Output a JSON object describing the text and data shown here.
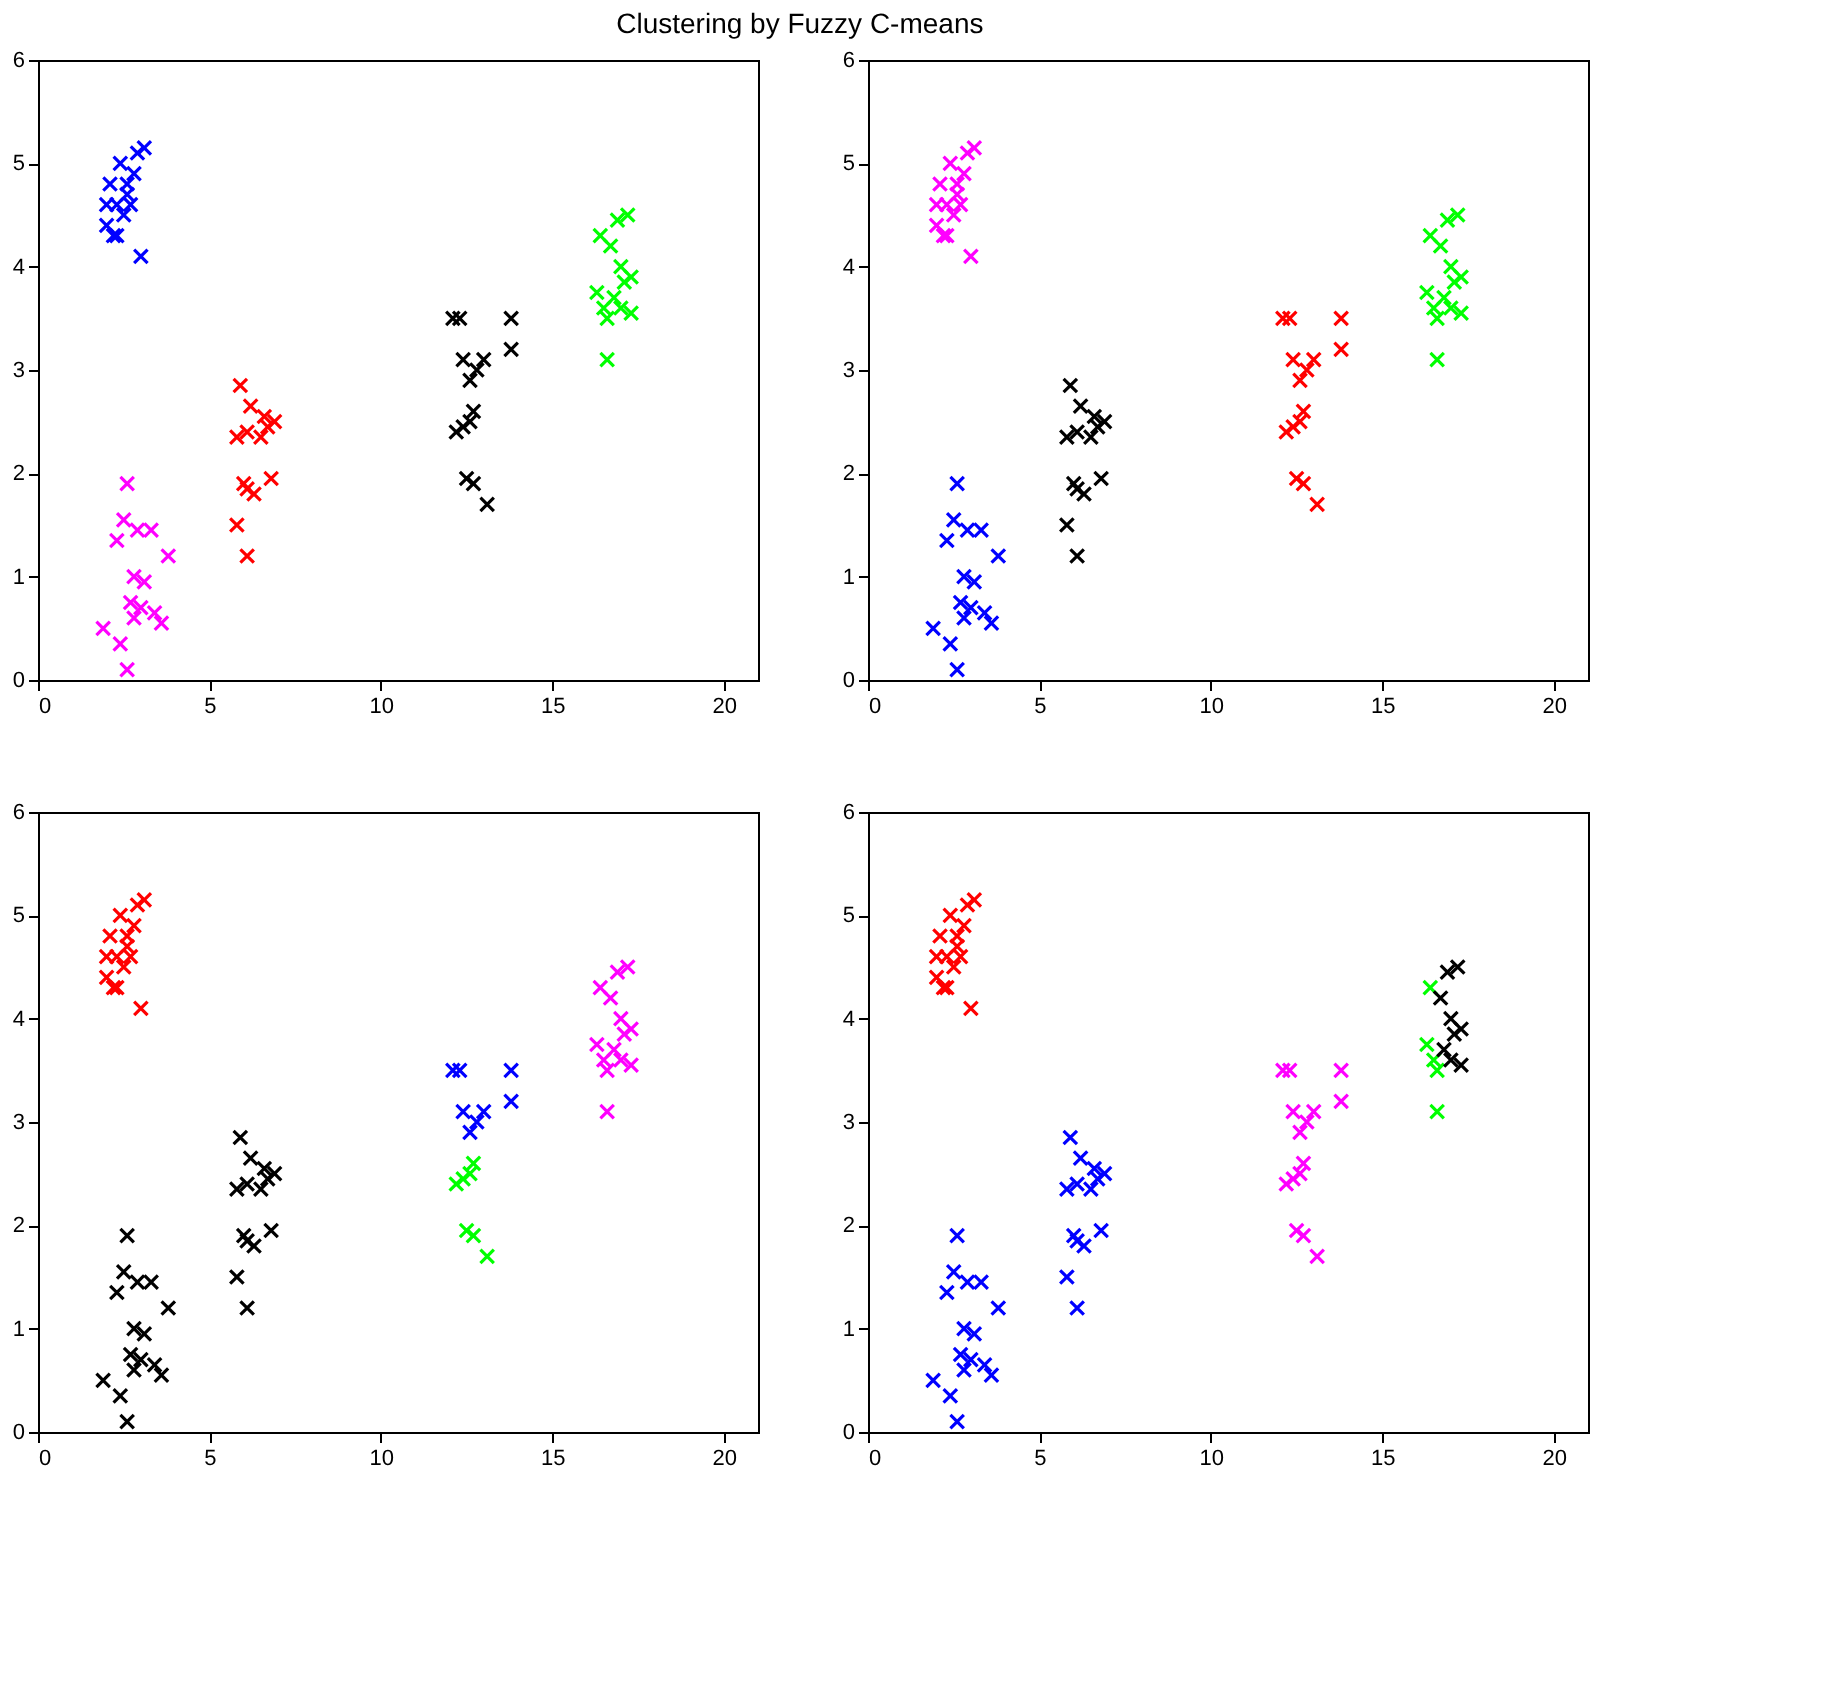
{
  "chart_data": [
    {
      "type": "scatter",
      "title": "Clustering by Fuzzy C-means",
      "marker": "cross",
      "grid": false,
      "xlim": [
        0,
        21
      ],
      "xticks": [
        0,
        5,
        10,
        15,
        20
      ],
      "ylim": [
        0,
        6
      ],
      "yticks": [
        0,
        1,
        2,
        3,
        4,
        5,
        6
      ],
      "series": [
        {
          "color": "#0000ff",
          "x": [
            2.0,
            2.2,
            2.3,
            2.1,
            2.4,
            2.6,
            2.5,
            2.8,
            2.9,
            3.1,
            2.7,
            2.3,
            3.0,
            2.6,
            2.0
          ],
          "values": [
            4.4,
            4.3,
            4.6,
            4.8,
            5.0,
            4.7,
            4.5,
            4.9,
            5.1,
            5.15,
            4.6,
            4.3,
            4.1,
            4.8,
            4.6
          ]
        },
        {
          "color": "#ff0000",
          "x": [
            5.9,
            6.2,
            6.6,
            6.9,
            6.5,
            5.8,
            6.1,
            6.0,
            6.1,
            6.3,
            6.8,
            5.8,
            6.1,
            6.7
          ],
          "values": [
            2.85,
            2.65,
            2.55,
            2.5,
            2.35,
            2.35,
            2.4,
            1.9,
            1.85,
            1.8,
            1.95,
            1.5,
            1.2,
            2.45
          ]
        },
        {
          "color": "#ff00ff",
          "x": [
            2.6,
            2.5,
            2.3,
            2.9,
            3.3,
            3.8,
            2.8,
            3.1,
            2.7,
            3.0,
            2.8,
            3.4,
            3.6,
            1.9,
            2.4,
            2.6
          ],
          "values": [
            1.9,
            1.55,
            1.35,
            1.45,
            1.45,
            1.2,
            1.0,
            0.95,
            0.75,
            0.7,
            0.6,
            0.65,
            0.55,
            0.5,
            0.35,
            0.1
          ]
        },
        {
          "color": "#000000",
          "x": [
            12.1,
            12.3,
            13.8,
            12.4,
            12.8,
            13.0,
            13.8,
            12.6,
            12.7,
            12.2,
            12.4,
            12.6,
            12.5,
            12.7,
            13.1
          ],
          "values": [
            3.5,
            3.5,
            3.5,
            3.1,
            3.0,
            3.1,
            3.2,
            2.9,
            2.6,
            2.4,
            2.45,
            2.5,
            1.95,
            1.9,
            1.7
          ]
        },
        {
          "color": "#00ff00",
          "x": [
            16.4,
            16.9,
            17.2,
            16.7,
            17.0,
            16.3,
            16.5,
            16.8,
            17.1,
            17.3,
            16.6,
            17.0,
            17.3,
            16.6
          ],
          "values": [
            4.3,
            4.45,
            4.5,
            4.2,
            4.0,
            3.75,
            3.6,
            3.7,
            3.85,
            3.9,
            3.5,
            3.6,
            3.55,
            3.1
          ]
        }
      ]
    },
    {
      "type": "scatter",
      "marker": "cross",
      "grid": false,
      "xlim": [
        0,
        21
      ],
      "xticks": [
        0,
        5,
        10,
        15,
        20
      ],
      "ylim": [
        0,
        6
      ],
      "yticks": [
        0,
        1,
        2,
        3,
        4,
        5,
        6
      ],
      "series": [
        {
          "color": "#ff00ff",
          "x": [
            2.0,
            2.2,
            2.3,
            2.1,
            2.4,
            2.6,
            2.5,
            2.8,
            2.9,
            3.1,
            2.7,
            2.3,
            3.0,
            2.6,
            2.0
          ],
          "values": [
            4.4,
            4.3,
            4.6,
            4.8,
            5.0,
            4.7,
            4.5,
            4.9,
            5.1,
            5.15,
            4.6,
            4.3,
            4.1,
            4.8,
            4.6
          ]
        },
        {
          "color": "#000000",
          "x": [
            5.9,
            6.2,
            6.6,
            6.9,
            6.5,
            5.8,
            6.1,
            6.0,
            6.1,
            6.3,
            6.8,
            5.8,
            6.1,
            6.7
          ],
          "values": [
            2.85,
            2.65,
            2.55,
            2.5,
            2.35,
            2.35,
            2.4,
            1.9,
            1.85,
            1.8,
            1.95,
            1.5,
            1.2,
            2.45
          ]
        },
        {
          "color": "#0000ff",
          "x": [
            2.6,
            2.5,
            2.3,
            2.9,
            3.3,
            3.8,
            2.8,
            3.1,
            2.7,
            3.0,
            2.8,
            3.4,
            3.6,
            1.9,
            2.4,
            2.6
          ],
          "values": [
            1.9,
            1.55,
            1.35,
            1.45,
            1.45,
            1.2,
            1.0,
            0.95,
            0.75,
            0.7,
            0.6,
            0.65,
            0.55,
            0.5,
            0.35,
            0.1
          ]
        },
        {
          "color": "#ff0000",
          "x": [
            12.1,
            12.3,
            13.8,
            12.4,
            12.8,
            13.0,
            13.8,
            12.6,
            12.7,
            12.2,
            12.4,
            12.6,
            12.5,
            12.7,
            13.1
          ],
          "values": [
            3.5,
            3.5,
            3.5,
            3.1,
            3.0,
            3.1,
            3.2,
            2.9,
            2.6,
            2.4,
            2.45,
            2.5,
            1.95,
            1.9,
            1.7
          ]
        },
        {
          "color": "#00ff00",
          "x": [
            16.4,
            16.9,
            17.2,
            16.7,
            17.0,
            16.3,
            16.5,
            16.8,
            17.1,
            17.3,
            16.6,
            17.0,
            17.3,
            16.6
          ],
          "values": [
            4.3,
            4.45,
            4.5,
            4.2,
            4.0,
            3.75,
            3.6,
            3.7,
            3.85,
            3.9,
            3.5,
            3.6,
            3.55,
            3.1
          ]
        }
      ]
    },
    {
      "type": "scatter",
      "marker": "cross",
      "grid": false,
      "xlim": [
        0,
        21
      ],
      "xticks": [
        0,
        5,
        10,
        15,
        20
      ],
      "ylim": [
        0,
        6
      ],
      "yticks": [
        0,
        1,
        2,
        3,
        4,
        5,
        6
      ],
      "series": [
        {
          "color": "#ff0000",
          "x": [
            2.0,
            2.2,
            2.3,
            2.1,
            2.4,
            2.6,
            2.5,
            2.8,
            2.9,
            3.1,
            2.7,
            2.3,
            3.0,
            2.6,
            2.0
          ],
          "values": [
            4.4,
            4.3,
            4.6,
            4.8,
            5.0,
            4.7,
            4.5,
            4.9,
            5.1,
            5.15,
            4.6,
            4.3,
            4.1,
            4.8,
            4.6
          ]
        },
        {
          "color": "#000000",
          "x": [
            5.9,
            6.2,
            6.6,
            6.9,
            6.5,
            5.8,
            6.1,
            6.0,
            6.1,
            6.3,
            6.8,
            5.8,
            6.1,
            6.7,
            2.6,
            2.5,
            2.3,
            2.9,
            3.3,
            3.8,
            2.8,
            3.1,
            2.7,
            3.0,
            2.8,
            3.4,
            3.6,
            1.9,
            2.4,
            2.6
          ],
          "values": [
            2.85,
            2.65,
            2.55,
            2.5,
            2.35,
            2.35,
            2.4,
            1.9,
            1.85,
            1.8,
            1.95,
            1.5,
            1.2,
            2.45,
            1.9,
            1.55,
            1.35,
            1.45,
            1.45,
            1.2,
            1.0,
            0.95,
            0.75,
            0.7,
            0.6,
            0.65,
            0.55,
            0.5,
            0.35,
            0.1
          ]
        },
        {
          "color": "#0000ff",
          "x": [
            12.1,
            12.3,
            13.8,
            12.4,
            12.8,
            13.0,
            13.8,
            12.6
          ],
          "values": [
            3.5,
            3.5,
            3.5,
            3.1,
            3.0,
            3.1,
            3.2,
            2.9
          ]
        },
        {
          "color": "#00ff00",
          "x": [
            12.7,
            12.2,
            12.4,
            12.6,
            12.5,
            12.7,
            13.1
          ],
          "values": [
            2.6,
            2.4,
            2.45,
            2.5,
            1.95,
            1.9,
            1.7
          ]
        },
        {
          "color": "#ff00ff",
          "x": [
            16.4,
            16.9,
            17.2,
            16.7,
            17.0,
            16.3,
            16.5,
            16.8,
            17.1,
            17.3,
            16.6,
            17.0,
            17.3,
            16.6
          ],
          "values": [
            4.3,
            4.45,
            4.5,
            4.2,
            4.0,
            3.75,
            3.6,
            3.7,
            3.85,
            3.9,
            3.5,
            3.6,
            3.55,
            3.1
          ]
        }
      ]
    },
    {
      "type": "scatter",
      "marker": "cross",
      "grid": false,
      "xlim": [
        0,
        21
      ],
      "xticks": [
        0,
        5,
        10,
        15,
        20
      ],
      "ylim": [
        0,
        6
      ],
      "yticks": [
        0,
        1,
        2,
        3,
        4,
        5,
        6
      ],
      "series": [
        {
          "color": "#ff0000",
          "x": [
            2.0,
            2.2,
            2.3,
            2.1,
            2.4,
            2.6,
            2.5,
            2.8,
            2.9,
            3.1,
            2.7,
            2.3,
            3.0,
            2.6,
            2.0
          ],
          "values": [
            4.4,
            4.3,
            4.6,
            4.8,
            5.0,
            4.7,
            4.5,
            4.9,
            5.1,
            5.15,
            4.6,
            4.3,
            4.1,
            4.8,
            4.6
          ]
        },
        {
          "color": "#0000ff",
          "x": [
            5.9,
            6.2,
            6.6,
            6.9,
            6.5,
            5.8,
            6.1,
            6.0,
            6.1,
            6.3,
            6.8,
            5.8,
            6.1,
            6.7,
            2.6,
            2.5,
            2.3,
            2.9,
            3.3,
            3.8,
            2.8,
            3.1,
            2.7,
            3.0,
            2.8,
            3.4,
            3.6,
            1.9,
            2.4,
            2.6
          ],
          "values": [
            2.85,
            2.65,
            2.55,
            2.5,
            2.35,
            2.35,
            2.4,
            1.9,
            1.85,
            1.8,
            1.95,
            1.5,
            1.2,
            2.45,
            1.9,
            1.55,
            1.35,
            1.45,
            1.45,
            1.2,
            1.0,
            0.95,
            0.75,
            0.7,
            0.6,
            0.65,
            0.55,
            0.5,
            0.35,
            0.1
          ]
        },
        {
          "color": "#ff00ff",
          "x": [
            12.1,
            12.3,
            13.8,
            12.4,
            12.8,
            13.0,
            13.8,
            12.6,
            12.7,
            12.2,
            12.4,
            12.6,
            12.5,
            12.7,
            13.1
          ],
          "values": [
            3.5,
            3.5,
            3.5,
            3.1,
            3.0,
            3.1,
            3.2,
            2.9,
            2.6,
            2.4,
            2.45,
            2.5,
            1.95,
            1.9,
            1.7
          ]
        },
        {
          "color": "#00ff00",
          "x": [
            16.4,
            16.3,
            16.5,
            16.6,
            16.6
          ],
          "values": [
            4.3,
            3.75,
            3.6,
            3.5,
            3.1
          ]
        },
        {
          "color": "#000000",
          "x": [
            16.9,
            17.2,
            16.7,
            17.0,
            16.8,
            17.1,
            17.3,
            17.0,
            17.3
          ],
          "values": [
            4.45,
            4.5,
            4.2,
            4.0,
            3.7,
            3.85,
            3.9,
            3.6,
            3.55
          ]
        }
      ]
    }
  ]
}
